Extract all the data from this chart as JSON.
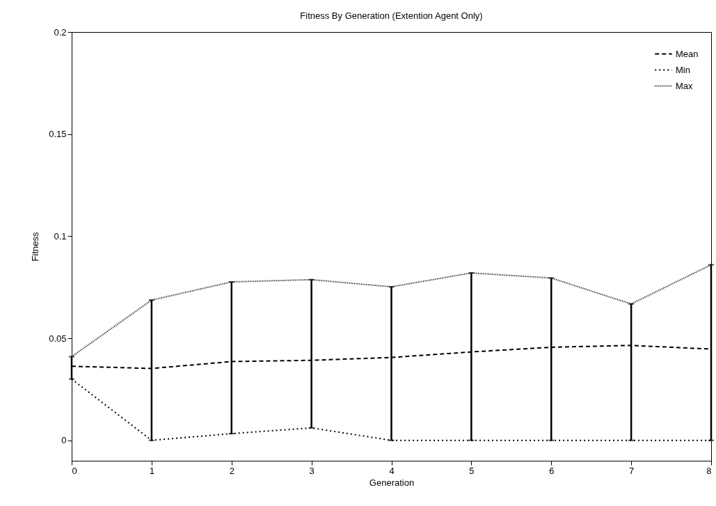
{
  "chart_data": {
    "type": "line",
    "title": "Fitness By Generation (Extention Agent Only)",
    "xlabel": "Generation",
    "ylabel": "Fitness",
    "x": [
      0,
      1,
      2,
      3,
      4,
      5,
      6,
      7,
      8
    ],
    "series": [
      {
        "name": "Mean",
        "color": "#000000",
        "line_style": "dashed",
        "values": [
          0.0363,
          0.0352,
          0.0386,
          0.0392,
          0.0406,
          0.0433,
          0.0456,
          0.0465,
          0.0447
        ],
        "errors": [
          [
            0.03,
            0.041
          ],
          [
            0,
            0.0687
          ],
          [
            0.0033,
            0.0776
          ],
          [
            0.0061,
            0.0787
          ],
          [
            0,
            0.0752
          ],
          [
            0,
            0.082
          ],
          [
            0,
            0.0795
          ],
          [
            0,
            0.0668
          ],
          [
            0,
            0.086
          ]
        ]
      },
      {
        "name": "Min",
        "color": "#000000",
        "line_style": "dotted",
        "values": [
          0.03,
          0,
          0.0033,
          0.0061,
          0,
          0,
          0,
          0,
          0
        ]
      },
      {
        "name": "Max",
        "color": "#000000",
        "line_style": "fine-dotted",
        "values": [
          0.041,
          0.0687,
          0.0776,
          0.0787,
          0.0752,
          0.082,
          0.0795,
          0.0668,
          0.086
        ]
      }
    ],
    "xlim": [
      0,
      8
    ],
    "xticks": [
      0,
      1,
      2,
      3,
      4,
      5,
      6,
      7,
      8
    ],
    "ylim": [
      -0.01,
      0.2
    ],
    "yticks": [
      0,
      0.05,
      0.1,
      0.15,
      0.2
    ],
    "grid": false,
    "legend": "top right",
    "marker": "none"
  }
}
